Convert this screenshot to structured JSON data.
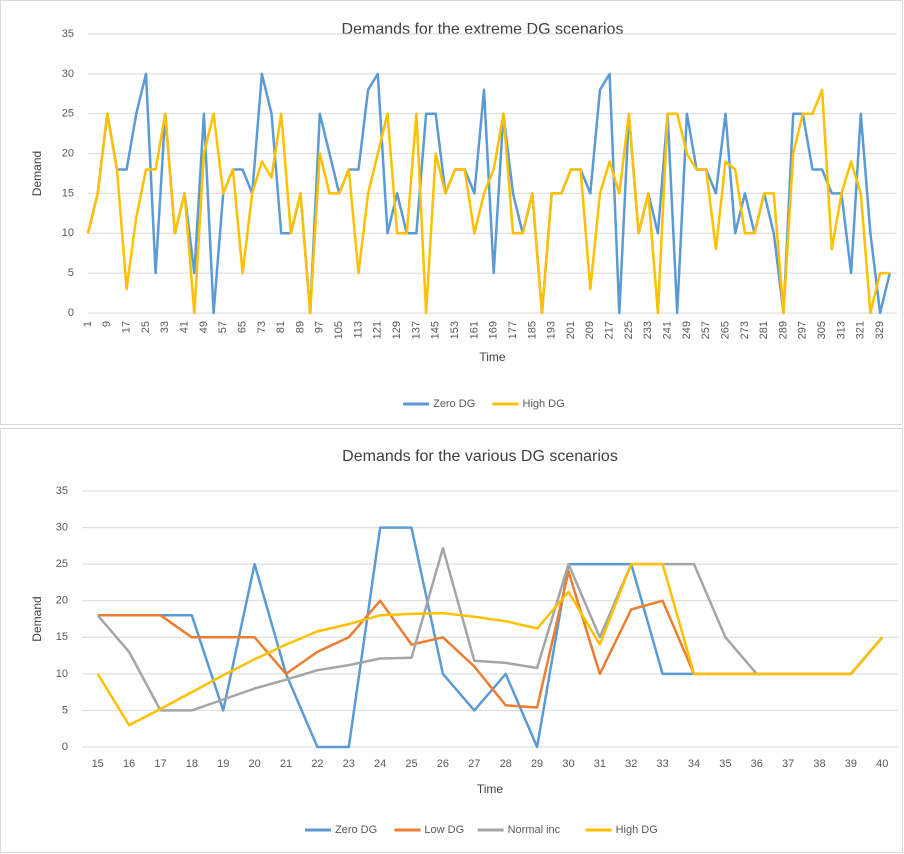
{
  "chart_data": [
    {
      "type": "line",
      "title": "Demands for the extreme DG scenarios",
      "x_label": "Time",
      "y_label": "Demand",
      "x": [
        1,
        5,
        9,
        13,
        17,
        21,
        25,
        29,
        33,
        37,
        41,
        45,
        49,
        53,
        57,
        61,
        65,
        69,
        73,
        77,
        81,
        85,
        89,
        93,
        97,
        101,
        105,
        109,
        113,
        117,
        121,
        125,
        129,
        133,
        137,
        141,
        145,
        149,
        153,
        157,
        161,
        165,
        169,
        173,
        177,
        181,
        185,
        189,
        193,
        197,
        201,
        205,
        209,
        213,
        217,
        221,
        225,
        229,
        233,
        237,
        241,
        245,
        249,
        253,
        257,
        261,
        265,
        269,
        273,
        277,
        281,
        285,
        289,
        293,
        297,
        301,
        305,
        309,
        313,
        317,
        321,
        325,
        329,
        333
      ],
      "series": [
        {
          "name": "Zero DG",
          "color": "#5b9bd5",
          "values": [
            10,
            15,
            25,
            18,
            18,
            25,
            30,
            5,
            25,
            10,
            15,
            5,
            25,
            0,
            15,
            18,
            18,
            15,
            30,
            25,
            10,
            10,
            15,
            0,
            25,
            20,
            15,
            18,
            18,
            28,
            30,
            10,
            15,
            10,
            10,
            25,
            25,
            15,
            18,
            18,
            15,
            28,
            5,
            25,
            15,
            10,
            15,
            0,
            15,
            15,
            18,
            18,
            15,
            28,
            30,
            0,
            25,
            10,
            15,
            10,
            25,
            0,
            25,
            18,
            18,
            15,
            25,
            10,
            15,
            10,
            15,
            10,
            0,
            25,
            25,
            18,
            18,
            15,
            15,
            5,
            25,
            10,
            0,
            5
          ]
        },
        {
          "name": "High DG",
          "color": "#ffc000",
          "values": [
            10,
            15,
            25,
            18,
            3,
            12,
            18,
            18,
            25,
            10,
            15,
            0,
            20,
            25,
            15,
            18,
            5,
            15,
            19,
            17,
            25,
            10,
            15,
            0,
            20,
            15,
            15,
            18,
            5,
            15,
            20,
            25,
            10,
            10,
            25,
            0,
            20,
            15,
            18,
            18,
            10,
            15,
            18,
            25,
            10,
            10,
            15,
            0,
            15,
            15,
            18,
            18,
            3,
            15,
            19,
            15,
            25,
            10,
            15,
            0,
            25,
            25,
            20,
            18,
            18,
            8,
            19,
            18,
            10,
            10,
            15,
            15,
            0,
            20,
            25,
            25,
            28,
            8,
            15,
            19,
            15,
            0,
            5,
            5
          ]
        }
      ],
      "xlim": [
        1,
        336
      ],
      "xticks": [
        1,
        9,
        17,
        25,
        33,
        41,
        49,
        57,
        65,
        73,
        81,
        89,
        97,
        105,
        113,
        121,
        129,
        137,
        145,
        153,
        161,
        169,
        177,
        185,
        193,
        201,
        209,
        217,
        225,
        233,
        241,
        249,
        257,
        265,
        273,
        281,
        289,
        297,
        305,
        313,
        321,
        329
      ],
      "ylim": [
        0,
        35
      ],
      "yticks": [
        0,
        5,
        10,
        15,
        20,
        25,
        30,
        35
      ],
      "grid": true,
      "legend": "bottom"
    },
    {
      "type": "line",
      "title": "Demands for the various DG scenarios",
      "x_label": "Time",
      "y_label": "Demand",
      "categories": [
        "15",
        "16",
        "17",
        "18",
        "19",
        "20",
        "21",
        "22",
        "23",
        "24",
        "25",
        "26",
        "27",
        "28",
        "29",
        "30",
        "31",
        "32",
        "33",
        "34",
        "35",
        "36",
        "37",
        "38",
        "39",
        "40"
      ],
      "series": [
        {
          "name": "Zero DG",
          "color": "#5b9bd5",
          "values": [
            18,
            18,
            18,
            18,
            5,
            25,
            10,
            0,
            0,
            30,
            30,
            10,
            5,
            10,
            0,
            25,
            25,
            25,
            10,
            10,
            10,
            10,
            10,
            10,
            10,
            15
          ]
        },
        {
          "name": "Low DG",
          "color": "#ed7d31",
          "values": [
            18,
            18,
            18,
            15,
            15,
            15,
            10,
            13,
            15,
            20,
            14,
            15,
            11,
            5.7,
            5.4,
            24,
            10,
            18.8,
            20,
            10,
            10,
            10,
            10,
            10,
            10,
            15
          ]
        },
        {
          "name": "Normal inc",
          "color": "#a5a5a5",
          "values": [
            18,
            13,
            5,
            5,
            6.5,
            8,
            9.2,
            10.5,
            11.2,
            12.1,
            12.2,
            27.2,
            11.8,
            11.5,
            10.8,
            25,
            15,
            25,
            25,
            25,
            15,
            10,
            10,
            10,
            10,
            15
          ]
        },
        {
          "name": "High DG",
          "color": "#ffc000",
          "values": [
            10,
            3,
            5.2,
            7.5,
            9.8,
            12,
            14,
            15.8,
            16.8,
            18,
            18.2,
            18.3,
            17.8,
            17.2,
            16.2,
            21.2,
            14,
            25,
            25,
            10,
            10,
            10,
            10,
            10,
            10,
            15
          ]
        }
      ],
      "ylim": [
        0,
        35
      ],
      "yticks": [
        0,
        5,
        10,
        15,
        20,
        25,
        30,
        35
      ],
      "grid": true,
      "legend": "bottom"
    }
  ]
}
